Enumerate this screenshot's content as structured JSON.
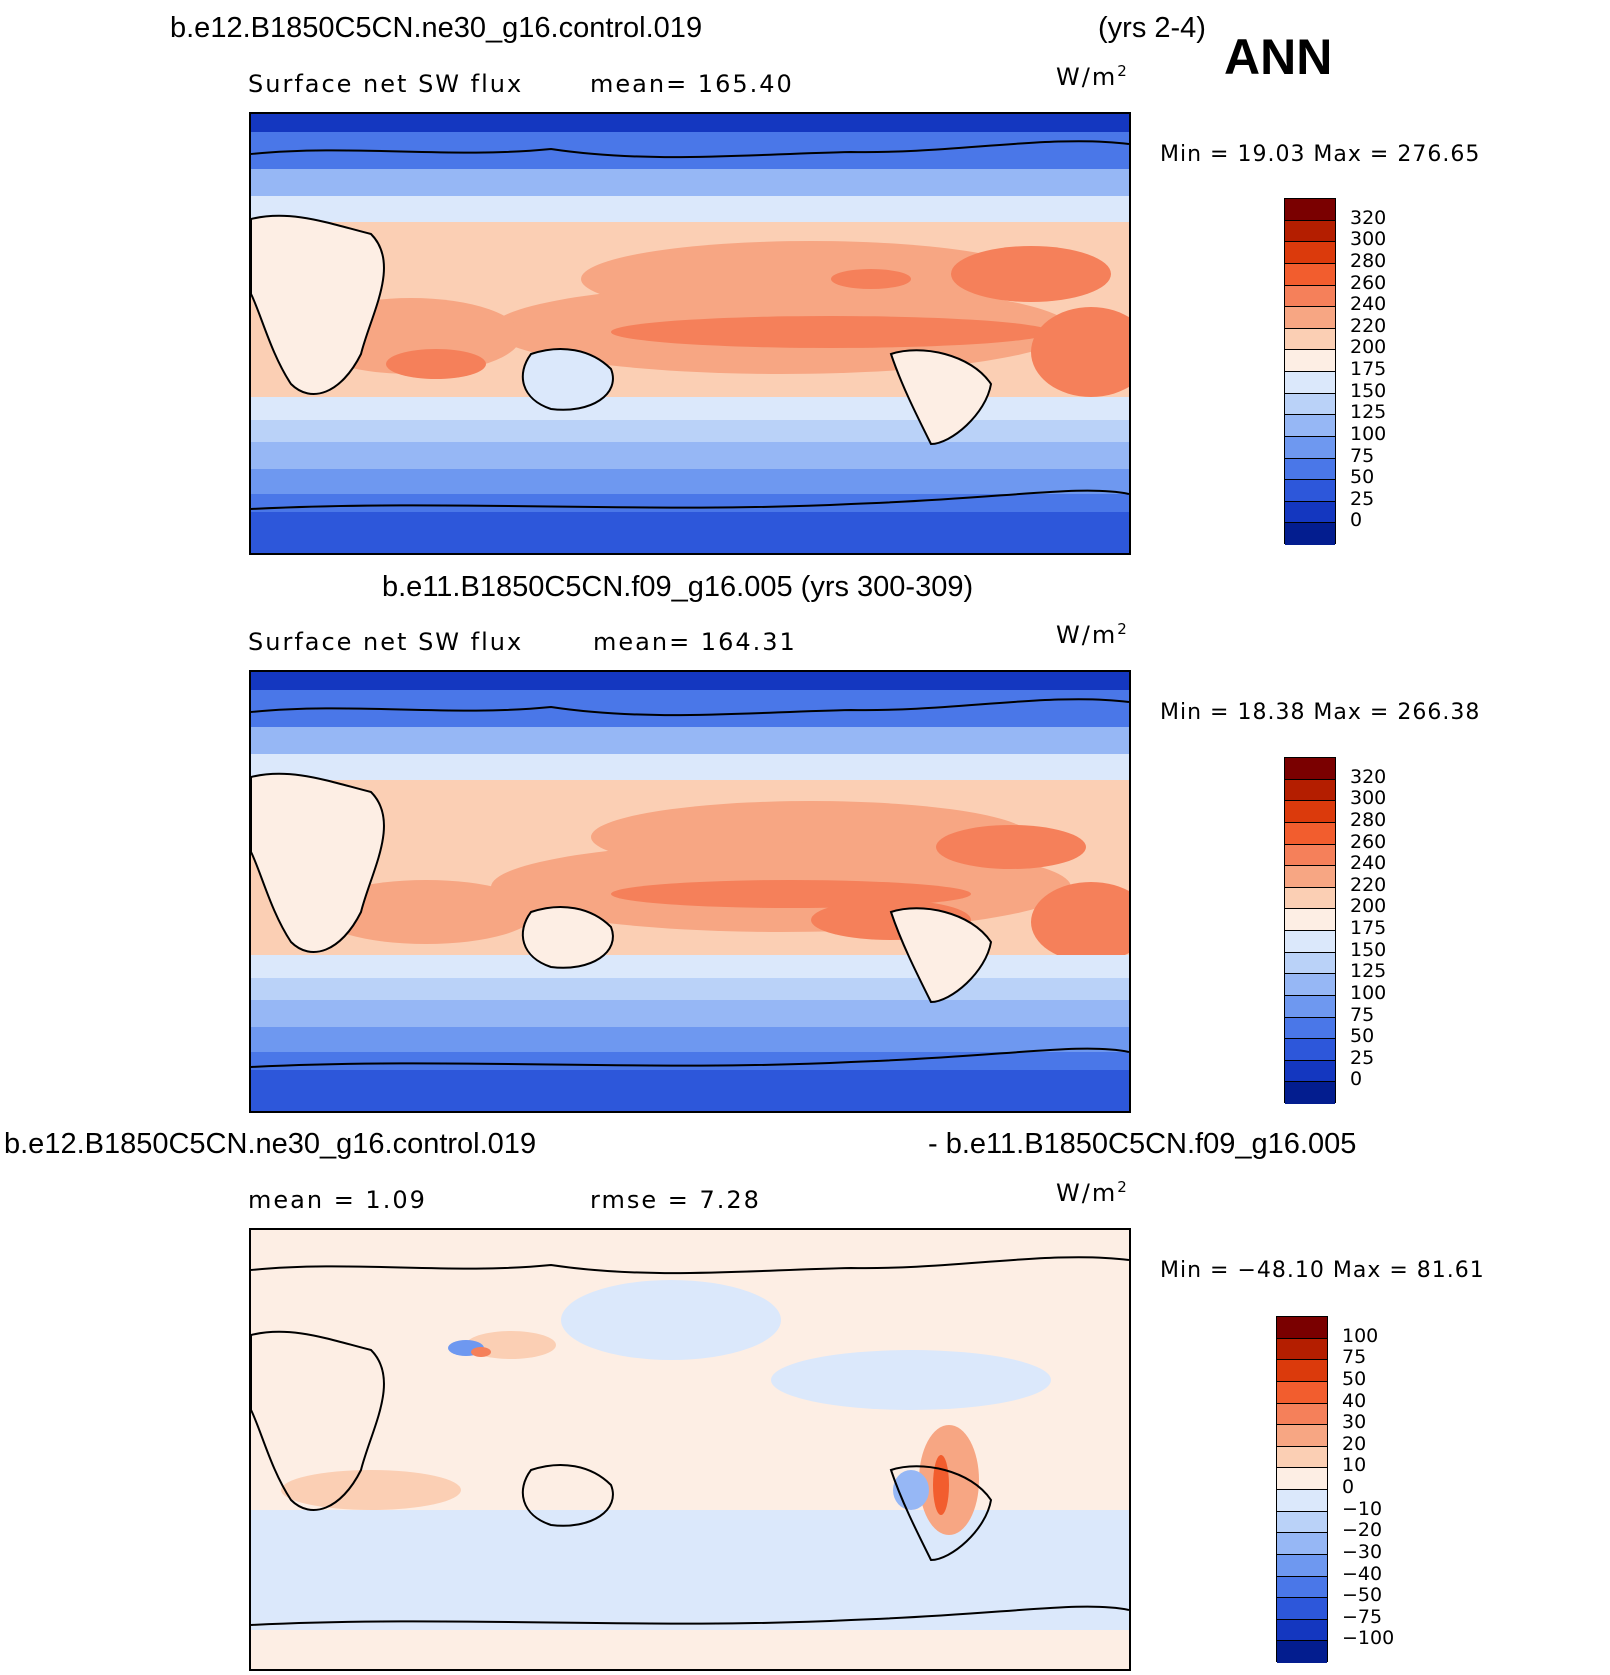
{
  "header": {
    "case_top": "b.e12.B1850C5CN.ne30_g16.control.019",
    "years_top": "(yrs 2-4)",
    "season": "ANN"
  },
  "panels": [
    {
      "variable": "Surface net SW flux",
      "mean": "mean=  165.40",
      "units_base": "W/m",
      "units_exp": "2",
      "minmax": "Min  =    19.03  Max  =  276.65",
      "colorbar": {
        "labels": [
          "320",
          "300",
          "280",
          "260",
          "240",
          "220",
          "200",
          "175",
          "150",
          "125",
          "100",
          "75",
          "50",
          "25",
          "0"
        ],
        "colors": [
          "#7a0000",
          "#b41e00",
          "#db3a0c",
          "#f25d2e",
          "#f5805a",
          "#f7a683",
          "#fbcfb4",
          "#fdeee4",
          "#dbe8fb",
          "#bad2f8",
          "#96b7f5",
          "#6e98f0",
          "#4a77e8",
          "#2d57da",
          "#1437c0",
          "#031d8f"
        ]
      }
    },
    {
      "title": "b.e11.B1850C5CN.f09_g16.005 (yrs 300-309)",
      "variable": "Surface net SW flux",
      "mean": "mean=  164.31",
      "units_base": "W/m",
      "units_exp": "2",
      "minmax": "Min  =    18.38  Max  =  266.38",
      "colorbar": {
        "labels": [
          "320",
          "300",
          "280",
          "260",
          "240",
          "220",
          "200",
          "175",
          "150",
          "125",
          "100",
          "75",
          "50",
          "25",
          "0"
        ],
        "colors": [
          "#7a0000",
          "#b41e00",
          "#db3a0c",
          "#f25d2e",
          "#f5805a",
          "#f7a683",
          "#fbcfb4",
          "#fdeee4",
          "#dbe8fb",
          "#bad2f8",
          "#96b7f5",
          "#6e98f0",
          "#4a77e8",
          "#2d57da",
          "#1437c0",
          "#031d8f"
        ]
      }
    },
    {
      "title_left": "b.e12.B1850C5CN.ne30_g16.control.019",
      "title_right": "- b.e11.B1850C5CN.f09_g16.005",
      "mean": "mean  =     1.09",
      "rmse": "rmse  =     7.28",
      "units_base": "W/m",
      "units_exp": "2",
      "minmax": "Min  =  −48.10  Max  =    81.61",
      "colorbar": {
        "labels": [
          "100",
          "75",
          "50",
          "40",
          "30",
          "20",
          "10",
          "0",
          "−10",
          "−20",
          "−30",
          "−40",
          "−50",
          "−75",
          "−100"
        ],
        "colors": [
          "#7a0000",
          "#b41e00",
          "#db3a0c",
          "#f25d2e",
          "#f5805a",
          "#f7a683",
          "#fbcfb4",
          "#fdeee4",
          "#dbe8fb",
          "#bad2f8",
          "#96b7f5",
          "#6e98f0",
          "#4a77e8",
          "#2d57da",
          "#1437c0",
          "#031d8f"
        ]
      }
    }
  ]
}
